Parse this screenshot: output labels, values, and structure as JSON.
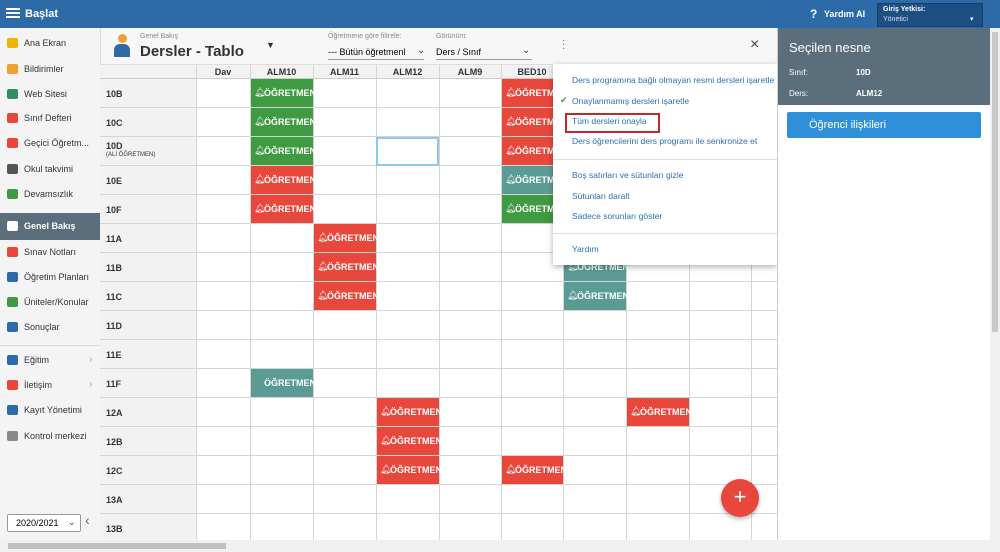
{
  "topbar": {
    "title": "Başlat",
    "help": "Yardım AI",
    "role_label": "Giriş Yetkisi:",
    "role": "Yönetici"
  },
  "sidebar": {
    "items": [
      {
        "label": "Ana Ekran"
      },
      {
        "label": "Bildirimler"
      },
      {
        "label": "Web Sitesi"
      },
      {
        "label": "Sınıf Defteri"
      },
      {
        "label": "Geçici Öğretm..."
      },
      {
        "label": "Okul takvimi"
      },
      {
        "label": "Devamsızlık"
      },
      {
        "label": "Genel Bakış",
        "selected": true
      },
      {
        "label": "Sınav Notları"
      },
      {
        "label": "Öğretim Planları"
      },
      {
        "label": "Üniteler/Konular"
      },
      {
        "label": "Sonuçlar"
      },
      {
        "label": "Eğitim",
        "submenu": true
      },
      {
        "label": "İletişim",
        "submenu": true
      },
      {
        "label": "Kayıt Yönetimi"
      },
      {
        "label": "Kontrol merkezi"
      }
    ],
    "year": "2020/2021"
  },
  "header": {
    "breadcrumb": "Genel Bakış",
    "title": "Dersler - Tablo",
    "filter_label": "Öğretmene göre filtrele:",
    "filter_value": "--- Bütün öğretmenl",
    "view_label": "Görünüm:",
    "view_value": "Ders / Sınıf"
  },
  "grid": {
    "columns": [
      "Dav",
      "ALM10",
      "ALM11",
      "ALM12",
      "ALM9",
      "BED10",
      null,
      null,
      null,
      null
    ],
    "rows": [
      {
        "label": "10B",
        "cells": [
          null,
          {
            "text": "ÖĞRETMEN",
            "color": "#3e9b41",
            "bell": true
          },
          null,
          null,
          null,
          {
            "text": "ÖĞRETMEN",
            "color": "#e8473c",
            "bell": true
          },
          null,
          null,
          null,
          null
        ]
      },
      {
        "label": "10C",
        "cells": [
          null,
          {
            "text": "ÖĞRETMEN",
            "color": "#3e9b41",
            "bell": true
          },
          null,
          null,
          null,
          {
            "text": "ÖĞRETMEN",
            "color": "#e8473c",
            "bell": true
          },
          null,
          null,
          null,
          null
        ]
      },
      {
        "label": "10D",
        "sublabel": "(ALİ ÖĞRETMEN)",
        "cells": [
          null,
          {
            "text": "ÖĞRETMEN",
            "color": "#3e9b41",
            "bell": true
          },
          null,
          null,
          null,
          {
            "text": "ÖĞRETMEN",
            "color": "#e8473c",
            "bell": true
          },
          null,
          null,
          null,
          null
        ]
      },
      {
        "label": "10E",
        "cells": [
          null,
          {
            "text": "ÖĞRETMEN",
            "color": "#e8473c",
            "bell": true
          },
          null,
          null,
          null,
          {
            "text": "ÖĞRETMEN",
            "color": "#5a9c94",
            "bell": true
          },
          null,
          null,
          null,
          null
        ]
      },
      {
        "label": "10F",
        "cells": [
          null,
          {
            "text": "ÖĞRETMEN",
            "color": "#e8473c",
            "bell": true
          },
          null,
          null,
          null,
          {
            "text": "ÖĞRETMEN",
            "color": "#3e9b41",
            "bell": true
          },
          null,
          null,
          null,
          null
        ]
      },
      {
        "label": "11A",
        "cells": [
          null,
          null,
          {
            "text": "ÖĞRETMEN",
            "color": "#e8473c",
            "bell": true
          },
          null,
          null,
          null,
          null,
          null,
          null,
          null
        ]
      },
      {
        "label": "11B",
        "cells": [
          null,
          null,
          {
            "text": "ÖĞRETMEN",
            "color": "#e8473c",
            "bell": true
          },
          null,
          null,
          null,
          {
            "text": "ÖĞRETMEN",
            "color": "#5a9c94",
            "bell": true
          },
          null,
          null,
          null
        ]
      },
      {
        "label": "11C",
        "cells": [
          null,
          null,
          {
            "text": "ÖĞRETMEN",
            "color": "#e8473c",
            "bell": true
          },
          null,
          null,
          null,
          {
            "text": "ÖĞRETMEN",
            "color": "#5a9c94",
            "bell": true
          },
          null,
          null,
          null
        ]
      },
      {
        "label": "11D",
        "cells": [
          null,
          null,
          null,
          null,
          null,
          null,
          null,
          null,
          null,
          null
        ]
      },
      {
        "label": "11E",
        "cells": [
          null,
          null,
          null,
          null,
          null,
          null,
          null,
          null,
          null,
          null
        ]
      },
      {
        "label": "11F",
        "cells": [
          null,
          {
            "text": "ÖĞRETMEN",
            "color": "#5a9c94",
            "bell": false
          },
          null,
          null,
          null,
          null,
          null,
          null,
          null,
          null
        ]
      },
      {
        "label": "12A",
        "cells": [
          null,
          null,
          null,
          {
            "text": "ÖĞRETMEN",
            "color": "#e8473c",
            "bell": true
          },
          null,
          null,
          null,
          {
            "text": "ÖĞRETMEN",
            "color": "#e8473c",
            "bell": true
          },
          null,
          null
        ]
      },
      {
        "label": "12B",
        "cells": [
          null,
          null,
          null,
          {
            "text": "ÖĞRETMEN",
            "color": "#e8473c",
            "bell": true
          },
          null,
          null,
          null,
          null,
          null,
          null
        ]
      },
      {
        "label": "12C",
        "cells": [
          null,
          null,
          null,
          {
            "text": "ÖĞRETMEN",
            "color": "#e8473c",
            "bell": true
          },
          null,
          {
            "text": "ÖĞRETMEN",
            "color": "#e8473c",
            "bell": true
          },
          null,
          null,
          null,
          null
        ]
      },
      {
        "label": "13A",
        "cells": [
          null,
          null,
          null,
          null,
          null,
          null,
          null,
          null,
          null,
          null
        ]
      },
      {
        "label": "13B",
        "cells": [
          null,
          null,
          null,
          null,
          null,
          null,
          null,
          null,
          null,
          null
        ]
      }
    ]
  },
  "menu": {
    "items": [
      {
        "text": "Ders programına bağlı olmayan resmi dersleri işaretle"
      },
      {
        "text": "Onaylanmamış dersleri işaretle",
        "checked": true
      },
      {
        "text": "Tüm dersleri onayla",
        "highlighted": true
      },
      {
        "text": "Ders öğrencilerini ders programı ile senkronize et"
      },
      {
        "text": "Boş satırları ve sütunları gizle"
      },
      {
        "text": "Sütunları daralt"
      },
      {
        "text": "Sadece sorunları göster"
      },
      {
        "text": "Yardım"
      }
    ]
  },
  "panel": {
    "title": "Seçilen nesne",
    "fields": [
      {
        "label": "Sınıf:",
        "value": "10D"
      },
      {
        "label": "Ders:",
        "value": "ALM12"
      }
    ],
    "button": "Öğrenci ilişkileri"
  }
}
